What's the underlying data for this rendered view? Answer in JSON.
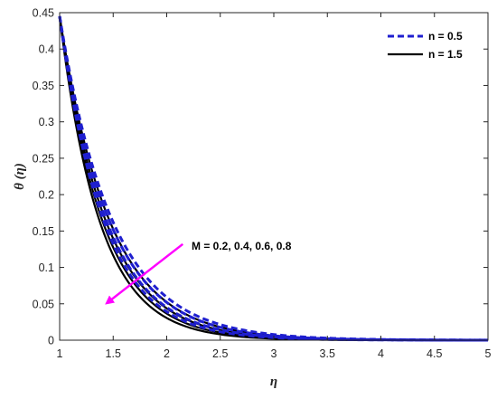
{
  "chart_data": {
    "type": "line",
    "xlabel": "η",
    "ylabel": "θ  (η)",
    "xlim": [
      1,
      5
    ],
    "ylim": [
      0,
      0.45
    ],
    "x_ticks": [
      "1",
      "1.5",
      "2",
      "2.5",
      "3",
      "3.5",
      "4",
      "4.5",
      "5"
    ],
    "y_ticks": [
      "0",
      "0.05",
      "0.1",
      "0.15",
      "0.2",
      "0.25",
      "0.3",
      "0.35",
      "0.4",
      "0.45"
    ],
    "grid": false,
    "legend": {
      "placement": "top-right",
      "entries": [
        {
          "label": "n = 0.5",
          "color": "#1f1fcf",
          "style": "dashed"
        },
        {
          "label": "n = 1.5",
          "color": "#000000",
          "style": "solid"
        }
      ]
    },
    "annotation": {
      "text": "M = 0.2, 0.4, 0.6, 0.8",
      "arrow_color": "#ff00ff",
      "arrow_from": [
        2.15,
        0.132
      ],
      "arrow_to": [
        1.45,
        0.052
      ]
    },
    "series_params": {
      "x0": 1,
      "y0": 0.445,
      "n_0_5_decay": [
        2.02,
        2.15,
        2.29,
        2.43
      ],
      "n_1_5_decay": [
        2.14,
        2.32,
        2.5,
        2.68
      ]
    }
  }
}
